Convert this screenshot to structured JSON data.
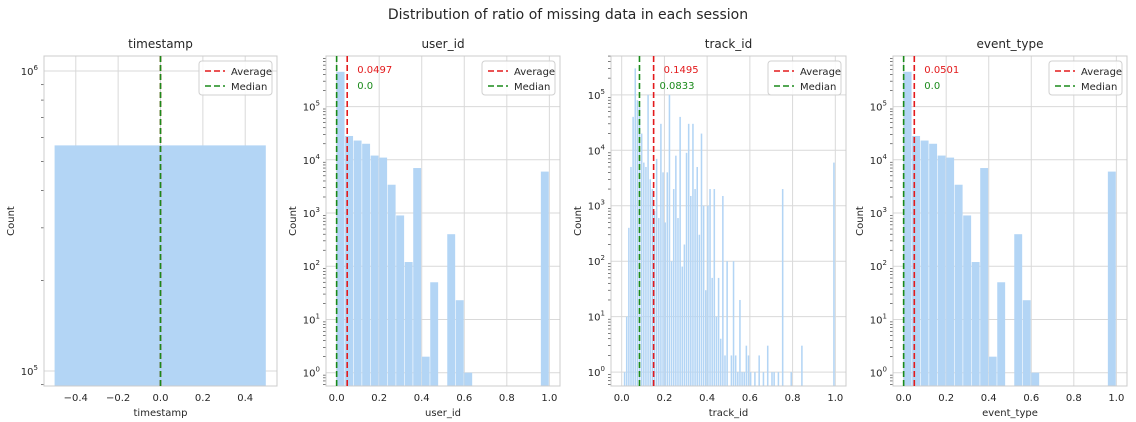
{
  "figure": {
    "title": "Distribution of ratio of missing data in each session"
  },
  "colors": {
    "bar": "#b3d5f5",
    "average": "#e31a1c",
    "median": "#1a8a1a",
    "grid": "#d9d9d9",
    "axes_edge": "#cccccc"
  },
  "chart_data": [
    {
      "type": "bar",
      "title": "timestamp",
      "xlabel": "timestamp",
      "ylabel": "Count",
      "yscale": "log",
      "xlim": [
        -0.55,
        0.55
      ],
      "ylim_exp": [
        4.95,
        6.05
      ],
      "xticks": [
        -0.4,
        -0.2,
        0.0,
        0.2,
        0.4
      ],
      "xtick_labels": [
        "−0.4",
        "−0.2",
        "0.0",
        "0.2",
        "0.4"
      ],
      "yticks_major": [
        5,
        6
      ],
      "bin_edges": [
        -0.5,
        0.5
      ],
      "counts": [
        565000
      ],
      "average": 0.0,
      "median": 0.0,
      "avg_label": "",
      "med_label": "",
      "legend": [
        "Average",
        "Median"
      ],
      "legend_position": "upper right",
      "grid": true
    },
    {
      "type": "bar",
      "title": "user_id",
      "xlabel": "user_id",
      "ylabel": "Count",
      "yscale": "log",
      "xlim": [
        -0.05,
        1.05
      ],
      "ylim_exp": [
        -0.25,
        5.95
      ],
      "xticks": [
        0.0,
        0.2,
        0.4,
        0.6,
        0.8,
        1.0
      ],
      "xtick_labels": [
        "0.0",
        "0.2",
        "0.4",
        "0.6",
        "0.8",
        "1.0"
      ],
      "yticks_major": [
        0,
        1,
        2,
        3,
        4,
        5
      ],
      "bin_edges": [
        0.0,
        0.04,
        0.08,
        0.12,
        0.16,
        0.2,
        0.24,
        0.28,
        0.32,
        0.36,
        0.4,
        0.44,
        0.48,
        0.52,
        0.56,
        0.6,
        0.64,
        0.68,
        0.72,
        0.76,
        0.8,
        0.84,
        0.88,
        0.92,
        0.96,
        1.0
      ],
      "counts": [
        450000,
        28000,
        23000,
        20000,
        12000,
        11000,
        3400,
        900,
        120,
        7000,
        2,
        50,
        0,
        400,
        23,
        1,
        0,
        0,
        0,
        0,
        0,
        0,
        0,
        0,
        6000
      ],
      "average": 0.0497,
      "median": 0.0,
      "avg_label": "0.0497",
      "med_label": "0.0",
      "legend": [
        "Average",
        "Median"
      ],
      "legend_position": "upper right",
      "grid": true
    },
    {
      "type": "bar",
      "title": "track_id",
      "xlabel": "track_id",
      "ylabel": "Count",
      "yscale": "log",
      "xlim": [
        -0.05,
        1.05
      ],
      "ylim_exp": [
        -0.25,
        5.7
      ],
      "xticks": [
        0.0,
        0.2,
        0.4,
        0.6,
        0.8,
        1.0
      ],
      "xtick_labels": [
        "0.0",
        "0.2",
        "0.4",
        "0.6",
        "0.8",
        "1.0"
      ],
      "yticks_major": [
        0,
        1,
        2,
        3,
        4,
        5
      ],
      "bin_edges": [
        0.0,
        0.01,
        0.02,
        0.03,
        0.04,
        0.05,
        0.06,
        0.07,
        0.08,
        0.09,
        0.1,
        0.11,
        0.12,
        0.13,
        0.14,
        0.15,
        0.16,
        0.17,
        0.18,
        0.19,
        0.2,
        0.21,
        0.22,
        0.23,
        0.24,
        0.25,
        0.26,
        0.27,
        0.28,
        0.29,
        0.3,
        0.31,
        0.32,
        0.33,
        0.34,
        0.35,
        0.36,
        0.37,
        0.38,
        0.39,
        0.4,
        0.41,
        0.42,
        0.43,
        0.44,
        0.45,
        0.46,
        0.47,
        0.48,
        0.49,
        0.5,
        0.51,
        0.52,
        0.53,
        0.54,
        0.55,
        0.56,
        0.57,
        0.58,
        0.59,
        0.6,
        0.61,
        0.62,
        0.63,
        0.64,
        0.65,
        0.66,
        0.67,
        0.68,
        0.69,
        0.7,
        0.71,
        0.72,
        0.73,
        0.74,
        0.75,
        0.76,
        0.77,
        0.78,
        0.79,
        0.8,
        0.81,
        0.82,
        0.83,
        0.84,
        0.85,
        0.86,
        0.87,
        0.88,
        0.89,
        0.9,
        0.91,
        0.92,
        0.93,
        0.94,
        0.95,
        0.96,
        0.97,
        0.98,
        0.99,
        1.0
      ],
      "counts": [
        0,
        1,
        10,
        400,
        5000,
        40000,
        300000,
        80000,
        60000,
        20000,
        6000,
        5000,
        100000,
        3000,
        2000,
        800,
        7000,
        600,
        30000,
        4000,
        500,
        4000,
        100000,
        100,
        2000,
        8000,
        600,
        40000,
        80,
        200,
        9000,
        30000,
        1500,
        30000,
        2000,
        5000,
        300,
        20000,
        1000,
        30,
        1000,
        2000,
        50,
        2000,
        10,
        50,
        4,
        1500,
        2,
        100,
        0,
        2,
        100,
        2,
        1,
        20,
        1,
        1,
        3,
        2,
        1,
        0,
        1,
        0,
        2,
        0,
        1,
        0,
        3,
        0,
        1,
        1,
        0,
        1,
        0,
        2000,
        0,
        0,
        0,
        1,
        0,
        0,
        0,
        0,
        3,
        0,
        0,
        0,
        0,
        0,
        0,
        0,
        0,
        0,
        0,
        0,
        0,
        0,
        0,
        6000
      ],
      "average": 0.1495,
      "median": 0.0833,
      "avg_label": "0.1495",
      "med_label": "0.0833",
      "legend": [
        "Average",
        "Median"
      ],
      "legend_position": "upper right",
      "grid": true
    },
    {
      "type": "bar",
      "title": "event_type",
      "xlabel": "event_type",
      "ylabel": "Count",
      "yscale": "log",
      "xlim": [
        -0.05,
        1.05
      ],
      "ylim_exp": [
        -0.25,
        5.95
      ],
      "xticks": [
        0.0,
        0.2,
        0.4,
        0.6,
        0.8,
        1.0
      ],
      "xtick_labels": [
        "0.0",
        "0.2",
        "0.4",
        "0.6",
        "0.8",
        "1.0"
      ],
      "yticks_major": [
        0,
        1,
        2,
        3,
        4,
        5
      ],
      "bin_edges": [
        0.0,
        0.04,
        0.08,
        0.12,
        0.16,
        0.2,
        0.24,
        0.28,
        0.32,
        0.36,
        0.4,
        0.44,
        0.48,
        0.52,
        0.56,
        0.6,
        0.64,
        0.68,
        0.72,
        0.76,
        0.8,
        0.84,
        0.88,
        0.92,
        0.96,
        1.0
      ],
      "counts": [
        450000,
        28000,
        23000,
        20000,
        12000,
        11000,
        3400,
        900,
        120,
        7000,
        2,
        50,
        0,
        400,
        23,
        1,
        0,
        0,
        0,
        0,
        0,
        0,
        0,
        0,
        6000
      ],
      "average": 0.0501,
      "median": 0.0,
      "avg_label": "0.0501",
      "med_label": "0.0",
      "legend": [
        "Average",
        "Median"
      ],
      "legend_position": "upper right",
      "grid": true
    }
  ]
}
